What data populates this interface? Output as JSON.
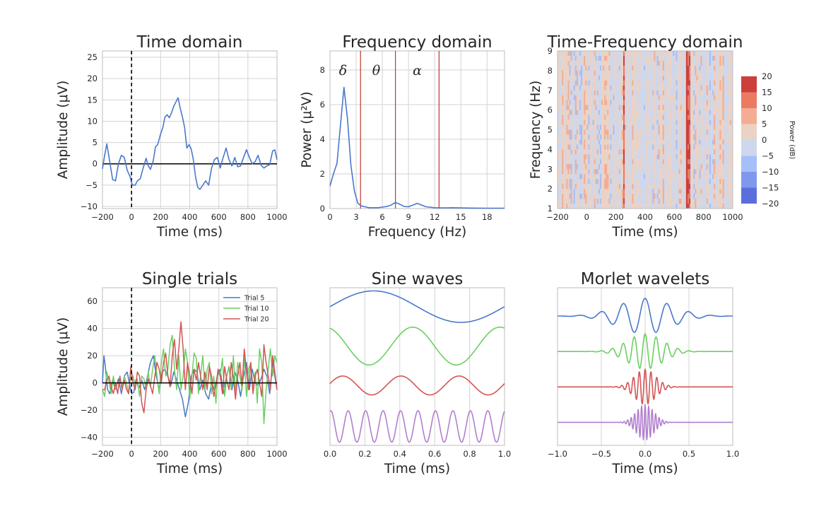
{
  "chart_data": [
    {
      "type": "line",
      "title": "Time domain",
      "xlabel": "Time (ms)",
      "ylabel": "Amplitude (μV)",
      "xlim": [
        -200,
        1000
      ],
      "ylim": [
        -10.5,
        26.5
      ],
      "xticks": [
        -200,
        0,
        200,
        400,
        600,
        800,
        1000
      ],
      "yticks": [
        -10,
        -5,
        0,
        5,
        10,
        15,
        20,
        25
      ],
      "grid": true,
      "annotations": [
        "dashed vertical line at 0 ms",
        "horizontal zero line"
      ],
      "series": [
        {
          "x": [
            -200,
            -185,
            -170,
            -150,
            -130,
            -110,
            -90,
            -70,
            -50,
            -30,
            -10,
            0,
            10,
            25,
            40,
            60,
            80,
            100,
            115,
            130,
            150,
            165,
            180,
            200,
            215,
            230,
            245,
            260,
            275,
            290,
            305,
            320,
            335,
            350,
            365,
            380,
            395,
            410,
            425,
            440,
            455,
            470,
            490,
            510,
            530,
            550,
            570,
            590,
            610,
            630,
            650,
            670,
            690,
            710,
            730,
            750,
            770,
            790,
            810,
            830,
            850,
            870,
            890,
            910,
            930,
            950,
            970,
            985,
            1000
          ],
          "y": [
            -1.2,
            2.0,
            4.7,
            0.5,
            -3.7,
            -4.0,
            0.0,
            2.0,
            1.5,
            -1.5,
            -3.0,
            -4.5,
            -5.0,
            -5.0,
            -4.0,
            -3.5,
            -1.0,
            1.3,
            -0.5,
            -1.3,
            0.8,
            4.0,
            4.5,
            7.0,
            8.5,
            11.0,
            11.5,
            10.8,
            12.0,
            13.5,
            14.5,
            15.5,
            13.0,
            11.0,
            8.5,
            3.7,
            4.5,
            3.5,
            1.0,
            -3.0,
            -5.5,
            -6.0,
            -5.0,
            -4.0,
            -5.0,
            -1.0,
            1.0,
            1.5,
            -1.0,
            1.5,
            3.7,
            1.0,
            -0.5,
            1.5,
            -0.7,
            -0.5,
            1.5,
            3.3,
            1.5,
            0.0,
            0.5,
            2.0,
            -0.3,
            -1.0,
            -0.5,
            -0.2,
            3.0,
            3.3,
            1.0
          ],
          "color": "#4a78cc"
        }
      ]
    },
    {
      "type": "line",
      "title": "Frequency domain",
      "xlabel": "Frequency (Hz)",
      "ylabel": "Power (μ²V)",
      "xlim": [
        0,
        20
      ],
      "ylim": [
        0,
        9.1
      ],
      "xticks": [
        0,
        3,
        6,
        9,
        12,
        15,
        18
      ],
      "yticks": [
        0,
        2,
        4,
        6,
        8
      ],
      "grid": true,
      "bands": [
        {
          "label": "δ",
          "x": 1.5
        },
        {
          "label": "θ",
          "x": 5.3
        },
        {
          "label": "α",
          "x": 10.0
        }
      ],
      "vlines": [
        3.5,
        7.5,
        12.5
      ],
      "series": [
        {
          "x": [
            0,
            0.4,
            0.8,
            1.2,
            1.6,
            2.0,
            2.4,
            2.8,
            3.2,
            3.6,
            4.0,
            4.5,
            5.0,
            5.5,
            6.0,
            6.5,
            7.0,
            7.5,
            8.0,
            8.5,
            9.0,
            9.5,
            10.0,
            10.5,
            11.0,
            12.0,
            13.0,
            14.0,
            16.0,
            18.0,
            20.0
          ],
          "y": [
            1.3,
            2.0,
            2.6,
            4.8,
            7.0,
            5.2,
            2.5,
            1.0,
            0.3,
            0.15,
            0.1,
            0.05,
            0.05,
            0.05,
            0.08,
            0.12,
            0.2,
            0.35,
            0.25,
            0.12,
            0.1,
            0.2,
            0.3,
            0.2,
            0.1,
            0.05,
            0.04,
            0.05,
            0.03,
            0.02,
            0.02
          ],
          "color": "#4a78cc"
        }
      ]
    },
    {
      "type": "heatmap",
      "title": "Time-Frequency domain",
      "xlabel": "Time (ms)",
      "ylabel": "Frequency (Hz)",
      "xlim": [
        -200,
        1000
      ],
      "ylim": [
        1,
        9
      ],
      "xticks": [
        -200,
        0,
        200,
        400,
        600,
        800,
        1000
      ],
      "yticks": [
        1,
        2,
        3,
        4,
        5,
        6,
        7,
        8,
        9
      ],
      "colorbar": {
        "label": "Power (dB)",
        "ticks": [
          20,
          15,
          10,
          5,
          0,
          -5,
          -10,
          -15,
          -20
        ],
        "levels": [
          -20,
          -15,
          -10,
          -5,
          0,
          5,
          10,
          15,
          20
        ],
        "colors": [
          "#5a6fdc",
          "#7f98ee",
          "#a7bff8",
          "#cdd8ee",
          "#ead3c6",
          "#f4ad92",
          "#ea7b62",
          "#cd3f3a"
        ]
      },
      "strong_columns": [
        {
          "x": 255,
          "level": 15
        },
        {
          "x": 690,
          "level": 20
        },
        {
          "x": 700,
          "level": 15
        }
      ]
    },
    {
      "type": "line",
      "title": "Single trials",
      "xlabel": "Time (ms)",
      "ylabel": "Amplitude (μV)",
      "xlim": [
        -200,
        1000
      ],
      "ylim": [
        -46,
        70
      ],
      "xticks": [
        -200,
        0,
        200,
        400,
        600,
        800,
        1000
      ],
      "yticks": [
        -40,
        -20,
        0,
        20,
        40,
        60
      ],
      "grid": true,
      "legend": "top-right",
      "annotations": [
        "dashed vertical line at 0 ms",
        "horizontal zero line"
      ],
      "series": [
        {
          "name": "Trial 5",
          "color": "#4a78cc",
          "x": [
            -200,
            -190,
            -180,
            -165,
            -150,
            -130,
            -110,
            -90,
            -70,
            -50,
            -30,
            -10,
            0,
            15,
            30,
            50,
            70,
            90,
            110,
            130,
            150,
            170,
            190,
            210,
            230,
            250,
            270,
            290,
            310,
            330,
            350,
            370,
            390,
            410,
            430,
            450,
            470,
            490,
            510,
            530,
            550,
            570,
            590,
            610,
            630,
            650,
            670,
            690,
            710,
            730,
            750,
            770,
            790,
            810,
            830,
            850,
            870,
            890,
            910,
            930,
            950,
            970,
            990,
            1000
          ],
          "y": [
            0,
            20,
            12,
            -5,
            -8,
            2,
            -5,
            3,
            -8,
            5,
            8,
            -3,
            -8,
            -7,
            2,
            -4,
            2,
            -5,
            5,
            15,
            20,
            5,
            -5,
            8,
            10,
            5,
            -2,
            8,
            2,
            -5,
            -12,
            -25,
            -15,
            5,
            10,
            8,
            -5,
            2,
            -8,
            -12,
            0,
            -5,
            5,
            10,
            -8,
            3,
            12,
            -5,
            8,
            2,
            -10,
            5,
            15,
            -5,
            10,
            0,
            -2,
            3,
            10,
            5,
            -8,
            15,
            2,
            -5
          ]
        },
        {
          "name": "Trial 10",
          "color": "#6bcf62",
          "x": [
            -200,
            -185,
            -170,
            -155,
            -140,
            -125,
            -110,
            -95,
            -80,
            -65,
            -50,
            -35,
            -20,
            -5,
            10,
            25,
            40,
            55,
            70,
            85,
            100,
            115,
            130,
            145,
            160,
            175,
            190,
            205,
            220,
            235,
            250,
            265,
            280,
            295,
            310,
            325,
            340,
            355,
            370,
            385,
            400,
            415,
            430,
            445,
            460,
            475,
            490,
            505,
            520,
            535,
            550,
            565,
            580,
            595,
            610,
            625,
            640,
            655,
            670,
            685,
            700,
            715,
            730,
            745,
            760,
            775,
            790,
            805,
            820,
            835,
            850,
            865,
            880,
            895,
            910,
            925,
            940,
            955,
            970,
            985,
            1000
          ],
          "y": [
            -5,
            -10,
            8,
            0,
            -8,
            5,
            -5,
            0,
            2,
            -3,
            5,
            0,
            -8,
            8,
            5,
            -2,
            3,
            -10,
            5,
            3,
            -5,
            8,
            -3,
            10,
            20,
            5,
            -8,
            15,
            25,
            5,
            10,
            28,
            35,
            10,
            -5,
            20,
            -5,
            5,
            25,
            15,
            -12,
            5,
            22,
            18,
            -8,
            5,
            20,
            -5,
            10,
            15,
            -8,
            5,
            -15,
            10,
            5,
            18,
            -10,
            5,
            12,
            -5,
            20,
            -8,
            15,
            5,
            -5,
            20,
            -10,
            10,
            15,
            -5,
            8,
            -15,
            25,
            15,
            -30,
            -5,
            10,
            25,
            5,
            20,
            15
          ]
        },
        {
          "name": "Trial 20",
          "color": "#d35555",
          "x": [
            -200,
            -185,
            -170,
            -155,
            -140,
            -125,
            -110,
            -95,
            -80,
            -65,
            -50,
            -35,
            -20,
            -5,
            10,
            25,
            40,
            55,
            70,
            85,
            100,
            115,
            130,
            145,
            160,
            175,
            190,
            205,
            220,
            235,
            250,
            265,
            280,
            295,
            310,
            325,
            340,
            355,
            370,
            385,
            400,
            415,
            430,
            445,
            460,
            475,
            490,
            505,
            520,
            535,
            550,
            565,
            580,
            595,
            610,
            625,
            640,
            655,
            670,
            685,
            700,
            715,
            730,
            745,
            760,
            775,
            790,
            805,
            820,
            835,
            850,
            865,
            880,
            895,
            910,
            925,
            940,
            955,
            970,
            985,
            1000
          ],
          "y": [
            -5,
            -5,
            2,
            5,
            -3,
            -8,
            0,
            -8,
            5,
            -5,
            2,
            -5,
            -8,
            12,
            0,
            -5,
            8,
            5,
            -15,
            -22,
            -5,
            3,
            -2,
            -8,
            5,
            15,
            10,
            0,
            15,
            22,
            5,
            -3,
            20,
            32,
            10,
            25,
            45,
            25,
            -5,
            15,
            5,
            -8,
            10,
            2,
            15,
            5,
            -5,
            8,
            -5,
            12,
            5,
            -10,
            -2,
            10,
            5,
            -8,
            12,
            2,
            -5,
            15,
            3,
            -12,
            5,
            15,
            -2,
            25,
            8,
            -5,
            15,
            -8,
            5,
            10,
            0,
            -10,
            28,
            15,
            5,
            -5,
            20,
            8,
            -5
          ]
        }
      ]
    },
    {
      "type": "line",
      "title": "Sine waves",
      "xlabel": "Time (ms)",
      "xlim": [
        0,
        1
      ],
      "xticks": [
        0.0,
        0.2,
        0.4,
        0.6,
        0.8,
        1.0
      ],
      "grid": true,
      "series": [
        {
          "color": "#4a78cc",
          "frequency": 1,
          "amplitude": 1,
          "offset": 6,
          "phase": 0
        },
        {
          "color": "#6bcf62",
          "frequency": 2,
          "amplitude": 1.2,
          "offset": 3.5,
          "phase": 1.9
        },
        {
          "color": "#d35555",
          "frequency": 3,
          "amplitude": 0.6,
          "offset": 1,
          "phase": 0.2
        },
        {
          "color": "#b27fce",
          "frequency": 10,
          "amplitude": 1,
          "offset": -1.6,
          "phase": 1.3
        }
      ]
    },
    {
      "type": "line",
      "title": "Morlet wavelets",
      "xlabel": "Time (ms)",
      "xlim": [
        -1,
        1
      ],
      "xticks": [
        -1.0,
        -0.5,
        0.0,
        0.5,
        1.0
      ],
      "grid": true,
      "series": [
        {
          "color": "#4a78cc",
          "frequency": 4,
          "width": 0.3,
          "offset": 5.5
        },
        {
          "color": "#6bcf62",
          "frequency": 8,
          "width": 0.2,
          "offset": 3.5
        },
        {
          "color": "#d35555",
          "frequency": 15,
          "width": 0.12,
          "offset": 1.5
        },
        {
          "color": "#b27fce",
          "frequency": 25,
          "width": 0.1,
          "offset": -0.5
        }
      ]
    }
  ]
}
